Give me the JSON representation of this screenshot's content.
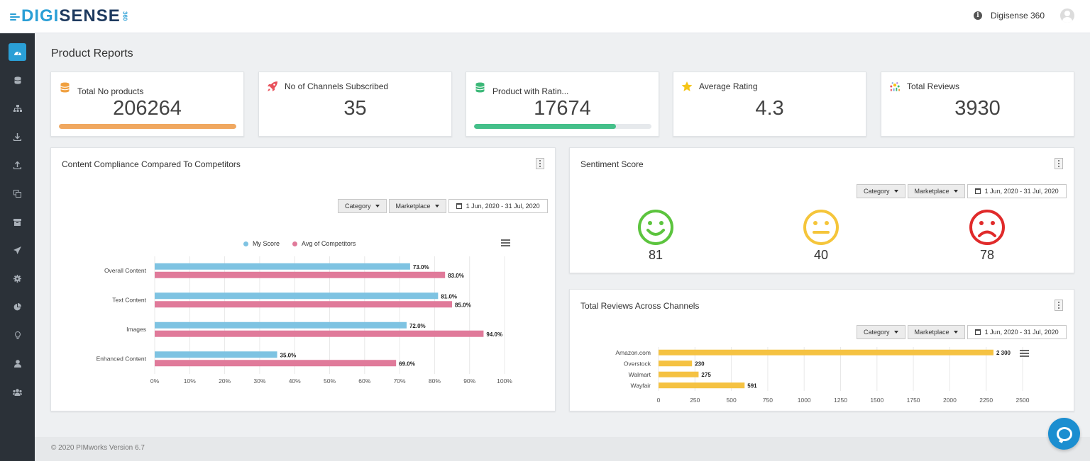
{
  "header": {
    "logo_text_a": "DIGI",
    "logo_text_b": "SENSE",
    "logo_360": "360",
    "user_name": "Digisense 360",
    "info_glyph": "i"
  },
  "sidebar": {
    "items": [
      {
        "icon": "dashboard-icon",
        "active": true
      },
      {
        "icon": "database-icon"
      },
      {
        "icon": "sitemap-icon"
      },
      {
        "icon": "download-icon"
      },
      {
        "icon": "upload-icon"
      },
      {
        "icon": "copy-icon"
      },
      {
        "icon": "archive-icon"
      },
      {
        "icon": "send-icon"
      },
      {
        "icon": "gear-icon"
      },
      {
        "icon": "pie-chart-icon"
      },
      {
        "icon": "lightbulb-icon"
      },
      {
        "icon": "user-icon"
      },
      {
        "icon": "users-icon"
      }
    ]
  },
  "page": {
    "title": "Product Reports"
  },
  "kpis": [
    {
      "label": "Total No products",
      "value": "206264",
      "icon": "database-icon",
      "icon_color": "#f0a040",
      "bar_color": "#f0a860",
      "bar_fill": 1.0
    },
    {
      "label": "No of Channels Subscribed",
      "value": "35",
      "icon": "rocket-icon",
      "icon_color": "#e8505a"
    },
    {
      "label": "Product with Ratin...",
      "value": "17674",
      "icon": "database-icon",
      "icon_color": "#3cb878",
      "bar_color": "#45c08a",
      "bar_fill": 0.8
    },
    {
      "label": "Average Rating",
      "value": "4.3",
      "icon": "star-icon",
      "icon_color": "#f5c518"
    },
    {
      "label": "Total Reviews",
      "value": "3930",
      "icon": "reviews-icon",
      "icon_color": "#7aa8e0"
    }
  ],
  "filters": {
    "category": "Category",
    "marketplace": "Marketplace",
    "date_range": "1 Jun, 2020 - 31 Jul, 2020"
  },
  "compliance": {
    "title": "Content Compliance Compared To Competitors",
    "legend": [
      "My Score",
      "Avg of Competitors"
    ]
  },
  "sentiment": {
    "title": "Sentiment Score",
    "positive": "81",
    "neutral": "40",
    "negative": "78",
    "colors": {
      "positive": "#5cc43e",
      "neutral": "#f5c53a",
      "negative": "#e02a2a"
    }
  },
  "reviews_channels": {
    "title": "Total Reviews Across Channels"
  },
  "chart_data": [
    {
      "type": "bar",
      "orientation": "horizontal",
      "categories": [
        "Overall Content",
        "Text Content",
        "Images",
        "Enhanced Content"
      ],
      "series": [
        {
          "name": "My Score",
          "values": [
            73.0,
            81.0,
            72.0,
            35.0
          ],
          "color": "#7ec3e2"
        },
        {
          "name": "Avg of Competitors",
          "values": [
            83.0,
            85.0,
            94.0,
            69.0
          ],
          "color": "#e07a9a"
        }
      ],
      "data_labels": [
        [
          "73.0%",
          "81.0%",
          "72.0%",
          "35.0%"
        ],
        [
          "83.0%",
          "85.0%",
          "94.0%",
          "69.0%"
        ]
      ],
      "xlim": [
        0,
        100
      ],
      "ticks": [
        "0%",
        "10%",
        "20%",
        "30%",
        "40%",
        "50%",
        "60%",
        "70%",
        "80%",
        "90%",
        "100%"
      ],
      "legend": "top"
    },
    {
      "type": "bar",
      "orientation": "horizontal",
      "categories": [
        "Amazon.com",
        "Overstock",
        "Walmart",
        "Wayfair"
      ],
      "values": [
        2300,
        230,
        275,
        591
      ],
      "data_labels": [
        "2 300",
        "230",
        "275",
        "591"
      ],
      "color": "#f5c242",
      "xlim": [
        0,
        2500
      ],
      "ticks": [
        "0",
        "250",
        "500",
        "750",
        "1000",
        "1250",
        "1500",
        "1750",
        "2000",
        "2250",
        "2500"
      ]
    }
  ],
  "footer": {
    "text": "© 2020 PIMworks Version 6.7"
  }
}
